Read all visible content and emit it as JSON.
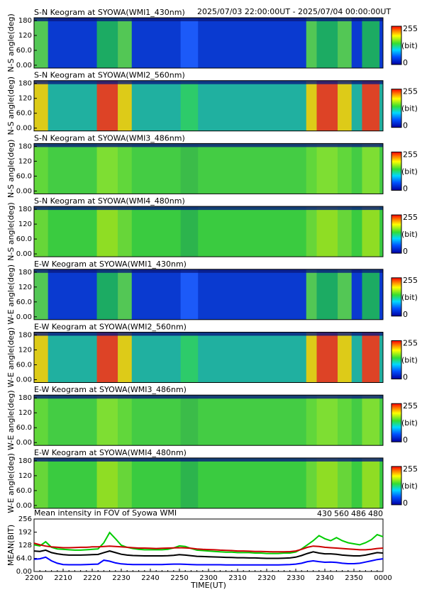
{
  "header": {
    "time_range": "2025/07/03 22:00:00UT - 2025/07/04 00:00:00UT"
  },
  "colorbar": {
    "max_label": "255",
    "unit_label": "(bit)",
    "min_label": "0"
  },
  "panels": [
    {
      "title": "S-N Keogram at SYOWA(WMI1_430nm)",
      "ylabel": "N-S angle(deg)",
      "channel": "430",
      "yticks": [
        "180",
        "120",
        "60.0",
        "0.00"
      ]
    },
    {
      "title": "S-N Keogram at SYOWA(WMI2_560nm)",
      "ylabel": "N-S angle(deg)",
      "channel": "560",
      "yticks": [
        "180",
        "120",
        "60.0",
        "0.00"
      ]
    },
    {
      "title": "S-N Keogram at SYOWA(WMI3_486nm)",
      "ylabel": "N-S angle(deg)",
      "channel": "486",
      "yticks": [
        "180",
        "120",
        "60.0",
        "0.00"
      ]
    },
    {
      "title": "S-N Keogram at SYOWA(WMI4_480nm)",
      "ylabel": "N-S angle(deg)",
      "channel": "480",
      "yticks": [
        "180",
        "120",
        "60.0",
        "0.00"
      ]
    },
    {
      "title": "E-W Keogram at SYOWA(WMI1_430nm)",
      "ylabel": "W-E angle(deg)",
      "channel": "430",
      "yticks": [
        "180",
        "120",
        "60.0",
        "0.00"
      ]
    },
    {
      "title": "E-W Keogram at SYOWA(WMI2_560nm)",
      "ylabel": "W-E angle(deg)",
      "channel": "560",
      "yticks": [
        "180",
        "120",
        "60.0",
        "0.00"
      ]
    },
    {
      "title": "E-W Keogram at SYOWA(WMI3_486nm)",
      "ylabel": "W-E angle(deg)",
      "channel": "486",
      "yticks": [
        "180",
        "120",
        "60.0",
        "0.00"
      ]
    },
    {
      "title": "E-W Keogram at SYOWA(WMI4_480nm)",
      "ylabel": "W-E angle(deg)",
      "channel": "480",
      "yticks": [
        "180",
        "120",
        "60.0",
        "0.00"
      ]
    }
  ],
  "chart_data": {
    "type": "line",
    "title": "Mean intensity in FOV of Syowa WMI",
    "xlabel": "TIME(UT)",
    "ylabel": "MEAN(BIT)",
    "x_tick_labels": [
      "2200",
      "2210",
      "2220",
      "2230",
      "2240",
      "2250",
      "2300",
      "2310",
      "2320",
      "2330",
      "2340",
      "2350",
      "0000"
    ],
    "y_tick_labels": [
      "256",
      "192",
      "128",
      "64.0",
      "0.00"
    ],
    "xlim": [
      0,
      120
    ],
    "ylim": [
      0,
      256
    ],
    "x_minutes": [
      0,
      2,
      4,
      6,
      8,
      10,
      12,
      14,
      16,
      18,
      20,
      22,
      24,
      26,
      28,
      30,
      32,
      34,
      36,
      38,
      40,
      42,
      44,
      46,
      48,
      50,
      52,
      54,
      56,
      58,
      60,
      62,
      64,
      66,
      68,
      70,
      72,
      74,
      76,
      78,
      80,
      82,
      84,
      86,
      88,
      90,
      92,
      94,
      96,
      98,
      100,
      102,
      104,
      106,
      108,
      110,
      112,
      114,
      116,
      118,
      120
    ],
    "series": [
      {
        "name": "430",
        "color": "#0000ff",
        "values": [
          60,
          62,
          70,
          52,
          40,
          34,
          33,
          33,
          33,
          34,
          35,
          36,
          55,
          50,
          42,
          37,
          35,
          34,
          34,
          34,
          34,
          34,
          34,
          35,
          36,
          36,
          35,
          34,
          33,
          33,
          33,
          33,
          33,
          32,
          32,
          32,
          32,
          32,
          32,
          32,
          32,
          32,
          32,
          33,
          34,
          36,
          40,
          48,
          52,
          48,
          45,
          46,
          44,
          40,
          38,
          38,
          40,
          46,
          52,
          58,
          62
        ]
      },
      {
        "name": "560",
        "color": "#00cc00",
        "values": [
          130,
          125,
          145,
          118,
          110,
          108,
          106,
          104,
          104,
          106,
          108,
          110,
          140,
          190,
          160,
          128,
          118,
          112,
          108,
          106,
          106,
          106,
          106,
          108,
          115,
          125,
          122,
          112,
          104,
          102,
          100,
          98,
          96,
          94,
          94,
          92,
          92,
          92,
          90,
          90,
          88,
          88,
          88,
          90,
          90,
          95,
          110,
          130,
          150,
          175,
          160,
          150,
          165,
          150,
          140,
          135,
          130,
          140,
          155,
          180,
          170
        ]
      },
      {
        "name": "486",
        "color": "#cc0000",
        "values": [
          138,
          130,
          124,
          120,
          118,
          116,
          116,
          117,
          118,
          118,
          120,
          120,
          122,
          124,
          122,
          120,
          118,
          116,
          114,
          114,
          113,
          112,
          113,
          114,
          115,
          116,
          115,
          113,
          110,
          108,
          107,
          106,
          104,
          103,
          102,
          100,
          100,
          99,
          98,
          98,
          97,
          96,
          96,
          96,
          97,
          100,
          108,
          118,
          124,
          122,
          118,
          116,
          114,
          112,
          110,
          108,
          106,
          106,
          108,
          112,
          114
        ]
      },
      {
        "name": "480",
        "color": "#000000",
        "values": [
          100,
          98,
          104,
          92,
          86,
          82,
          80,
          80,
          80,
          81,
          82,
          83,
          92,
          100,
          92,
          84,
          80,
          78,
          77,
          76,
          76,
          76,
          76,
          77,
          79,
          82,
          80,
          77,
          74,
          73,
          72,
          71,
          70,
          69,
          68,
          67,
          67,
          66,
          66,
          65,
          64,
          64,
          64,
          65,
          66,
          70,
          78,
          88,
          96,
          90,
          86,
          86,
          84,
          80,
          78,
          76,
          76,
          80,
          86,
          92,
          90
        ]
      }
    ]
  }
}
